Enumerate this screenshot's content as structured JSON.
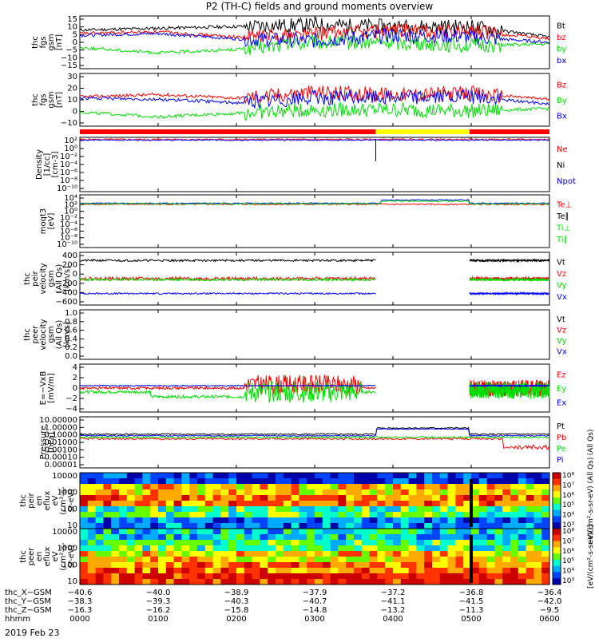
{
  "title": "P2 (TH-C) fields and ground moments overview",
  "date_label": "2019 Feb 23",
  "colors": {
    "black": "#000000",
    "red": "#ff0000",
    "green": "#00dd00",
    "blue": "#0000ff",
    "yellow": "#ffff00"
  },
  "chart_data": [
    {
      "type": "line",
      "panel": "fgs_gsm_magnitude",
      "ylabel": [
        "thc",
        "fgs",
        "gsm",
        "[nT]"
      ],
      "yticks": [
        "15",
        "10",
        "5",
        "0",
        "−5",
        "−10",
        "−15"
      ],
      "ylim": [
        -15,
        15
      ],
      "series": [
        {
          "name": "Bt",
          "color": "#000000",
          "x": [
            "0000",
            "0100",
            "0200",
            "0300",
            "0400",
            "0500",
            "0600"
          ],
          "values": [
            7,
            8,
            9,
            10,
            9,
            9,
            3
          ]
        },
        {
          "name": "bz",
          "color": "#ff0000",
          "x": [
            "0000",
            "0100",
            "0200",
            "0300",
            "0400",
            "0500",
            "0600"
          ],
          "values": [
            5,
            6,
            3,
            5,
            7,
            6,
            2
          ]
        },
        {
          "name": "by",
          "color": "#00dd00",
          "x": [
            "0000",
            "0100",
            "0200",
            "0300",
            "0400",
            "0500",
            "0600"
          ],
          "values": [
            -3,
            -6,
            -4,
            0,
            0,
            -2,
            -1
          ]
        },
        {
          "name": "bx",
          "color": "#0000ff",
          "x": [
            "0000",
            "0100",
            "0200",
            "0300",
            "0400",
            "0500",
            "0600"
          ],
          "values": [
            4,
            5,
            2,
            1,
            4,
            3,
            0
          ]
        }
      ]
    },
    {
      "type": "line",
      "panel": "fgs_gsm_components",
      "ylabel": [
        "thc",
        "fgs",
        "gsm",
        "[nT]"
      ],
      "yticks": [
        "30",
        "20",
        "10",
        "0",
        "−10"
      ],
      "ylim": [
        -15,
        30
      ],
      "series": [
        {
          "name": "Bz",
          "color": "#ff0000",
          "x": [
            "0000",
            "0100",
            "0200",
            "0300",
            "0400",
            "0500",
            "0600"
          ],
          "values": [
            10,
            12,
            9,
            14,
            12,
            13,
            8
          ]
        },
        {
          "name": "By",
          "color": "#00dd00",
          "x": [
            "0000",
            "0100",
            "0200",
            "0300",
            "0400",
            "0500",
            "0600"
          ],
          "values": [
            -3,
            -7,
            -4,
            -1,
            -1,
            -2,
            0
          ]
        },
        {
          "name": "Bx",
          "color": "#0000ff",
          "x": [
            "0000",
            "0100",
            "0200",
            "0300",
            "0400",
            "0500",
            "0600"
          ],
          "values": [
            9,
            8,
            5,
            9,
            10,
            10,
            4
          ]
        }
      ]
    },
    {
      "type": "line",
      "panel": "density",
      "ylabel": [
        "Density",
        "[1/cc]",
        "[cm-3]"
      ],
      "yticks": [
        "10²",
        "10⁰",
        "10⁻²",
        "10⁻⁴",
        "10⁻⁶",
        "10⁻⁸",
        "10⁻¹⁰"
      ],
      "scale": "log",
      "series": [
        {
          "name": "Ne",
          "color": "#ff0000"
        },
        {
          "name": "Ni",
          "color": "#000000"
        },
        {
          "name": "Npot",
          "color": "#0000ff"
        }
      ]
    },
    {
      "type": "line",
      "panel": "temperature",
      "ylabel": [
        "moqt3",
        "[eV]"
      ],
      "yticks": [
        "10⁴",
        "10²",
        "10⁰",
        "10⁻²",
        "10⁻⁴",
        "10⁻⁶",
        "10⁻⁸",
        "10⁻¹⁰"
      ],
      "scale": "log",
      "series": [
        {
          "name": "Te⊥",
          "color": "#ff0000"
        },
        {
          "name": "Te∥",
          "color": "#000000"
        },
        {
          "name": "Ti⊥",
          "color": "#00dd00"
        },
        {
          "name": "Ti∥",
          "color": "#00dd00"
        }
      ]
    },
    {
      "type": "line",
      "panel": "peir_velocity",
      "ylabel": [
        "thc",
        "peir",
        "velocity",
        "gsm",
        "(All Qs)",
        "[km/s]"
      ],
      "yticks": [
        "400",
        "200",
        "0",
        "−200",
        "−400",
        "−600"
      ],
      "ylim": [
        -600,
        500
      ],
      "series": [
        {
          "name": "Vt",
          "color": "#000000"
        },
        {
          "name": "Vz",
          "color": "#ff0000"
        },
        {
          "name": "Vy",
          "color": "#00dd00"
        },
        {
          "name": "Vx",
          "color": "#0000ff"
        }
      ]
    },
    {
      "type": "line",
      "panel": "peer_velocity",
      "ylabel": [
        "thc",
        "peer",
        "velocity",
        "gsm",
        "(All Qs)",
        "[km/s]"
      ],
      "yticks": [
        "1.0",
        "0.8",
        "0.6",
        "0.4",
        "0.2",
        "0.0"
      ],
      "ylim": [
        0,
        1
      ],
      "series": [
        {
          "name": "Vt",
          "color": "#000000"
        },
        {
          "name": "Vz",
          "color": "#ff0000"
        },
        {
          "name": "Vy",
          "color": "#00dd00"
        },
        {
          "name": "Vx",
          "color": "#0000ff"
        }
      ]
    },
    {
      "type": "line",
      "panel": "electric_field",
      "ylabel": [
        "E=−VxB",
        "[mV/m]"
      ],
      "yticks": [
        "4",
        "2",
        "0",
        "−2",
        "−4"
      ],
      "ylim": [
        -4,
        4
      ],
      "series": [
        {
          "name": "Ez",
          "color": "#ff0000"
        },
        {
          "name": "Ey",
          "color": "#00dd00"
        },
        {
          "name": "Ex",
          "color": "#0000ff"
        }
      ]
    },
    {
      "type": "line",
      "panel": "pressure",
      "ylabel": [
        "Pressure",
        "[nPa]"
      ],
      "yticks": [
        "10.00000",
        "1.00000",
        "0.10000",
        "0.01000",
        "0.00100",
        "0.00010",
        "0.00001"
      ],
      "scale": "log",
      "side_label": "(All Qs)",
      "series": [
        {
          "name": "Pt",
          "color": "#000000"
        },
        {
          "name": "Pb",
          "color": "#ff0000"
        },
        {
          "name": "Pe",
          "color": "#00dd00"
        },
        {
          "name": "Pi",
          "color": "#0000ff"
        }
      ]
    },
    {
      "type": "heatmap",
      "panel": "peir_spectrogram",
      "ylabel": [
        "thc",
        "peir",
        "en",
        "eflux",
        "eV",
        "(cm²-s-",
        "sr-eV)"
      ],
      "yticks": [
        "10000",
        "1000",
        "100",
        "10"
      ],
      "scale": "log"
    },
    {
      "type": "heatmap",
      "panel": "peer_spectrogram",
      "ylabel": [
        "thc",
        "peer",
        "en",
        "eflux",
        "eV",
        "(cm²-s-",
        "sr-eV)"
      ],
      "yticks": [
        "10000",
        "1000",
        "100",
        "10"
      ],
      "scale": "log"
    }
  ],
  "colorbars": [
    {
      "labels": [
        "10⁸",
        "10⁷",
        "10⁶",
        "10⁵",
        "10⁴",
        "10³"
      ],
      "side_label": "eV/(cm²-s-sr-eV) (All Qs)"
    },
    {
      "labels": [
        "10⁸",
        "10⁷",
        "10⁶",
        "10⁵",
        "10⁴",
        "10³"
      ],
      "side_label": "[eV/(cm²-s-sr-eV)]"
    }
  ],
  "xaxis": {
    "rows": [
      {
        "label": "thc_X−GSM",
        "values": [
          "−40.6",
          "−40.0",
          "−38.9",
          "−37.9",
          "−37.2",
          "−36.8",
          "−36.4"
        ]
      },
      {
        "label": "thc_Y−GSM",
        "values": [
          "−38.3",
          "−39.3",
          "−40.3",
          "−40.7",
          "−41.1",
          "−41.5",
          "−42.0"
        ]
      },
      {
        "label": "thc_Z−GSM",
        "values": [
          "−16.3",
          "−16.2",
          "−15.8",
          "−14.8",
          "−13.2",
          "−11.3",
          "−9.5"
        ]
      },
      {
        "label": "hhmm",
        "values": [
          "0000",
          "0100",
          "0200",
          "0300",
          "0400",
          "0500",
          "0600"
        ]
      }
    ]
  }
}
